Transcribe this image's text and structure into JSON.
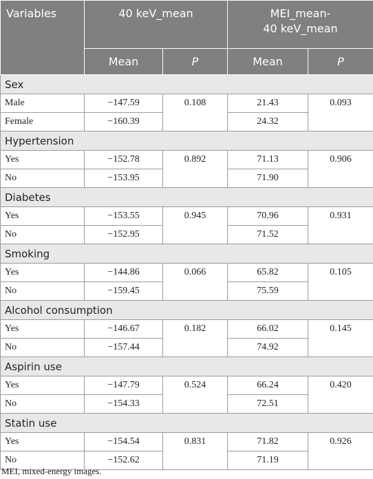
{
  "header": {
    "variables": "Variables",
    "group1": "40 keV_mean",
    "group2": [
      "MEI_mean-",
      "40 keV_mean"
    ],
    "mean1": "Mean",
    "p1": "P",
    "mean2": "Mean",
    "p2": "P"
  },
  "groups": [
    {
      "name": "Sex",
      "rows": [
        {
          "label": "Male",
          "mean40": "−147.59",
          "mei": "21.43"
        },
        {
          "label": "Female",
          "mean40": "−160.39",
          "mei": "24.32"
        }
      ],
      "p40": "0.108",
      "pmei": "0.093"
    },
    {
      "name": "Hypertension",
      "rows": [
        {
          "label": "Yes",
          "mean40": "−152.78",
          "mei": "71.13"
        },
        {
          "label": "No",
          "mean40": "−153.95",
          "mei": "71.90"
        }
      ],
      "p40": "0.892",
      "pmei": "0.906"
    },
    {
      "name": "Diabetes",
      "rows": [
        {
          "label": "Yes",
          "mean40": "−153.55",
          "mei": "70.96"
        },
        {
          "label": "No",
          "mean40": "−152.95",
          "mei": "71.52"
        }
      ],
      "p40": "0.945",
      "pmei": "0.931"
    },
    {
      "name": "Smoking",
      "rows": [
        {
          "label": "Yes",
          "mean40": "−144.86",
          "mei": "65.82"
        },
        {
          "label": "No",
          "mean40": "−159.45",
          "mei": "75.59"
        }
      ],
      "p40": "0.066",
      "pmei": "0.105"
    },
    {
      "name": "Alcohol consumption",
      "rows": [
        {
          "label": "Yes",
          "mean40": "−146.67",
          "mei": "66.02"
        },
        {
          "label": "No",
          "mean40": "−157.44",
          "mei": "74.92"
        }
      ],
      "p40": "0.182",
      "pmei": "0.145"
    },
    {
      "name": "Aspirin use",
      "rows": [
        {
          "label": "Yes",
          "mean40": "−147.79",
          "mei": "66.24"
        },
        {
          "label": "No",
          "mean40": "−154.33",
          "mei": "72.51"
        }
      ],
      "p40": "0.524",
      "pmei": "0.420"
    },
    {
      "name": "Statin use",
      "rows": [
        {
          "label": "Yes",
          "mean40": "−154.54",
          "mei": "71.82"
        },
        {
          "label": "No",
          "mean40": "−152.62",
          "mei": "71.19"
        }
      ],
      "p40": "0.831",
      "pmei": "0.926"
    }
  ],
  "footnote": "MEI, mixed-energy images."
}
